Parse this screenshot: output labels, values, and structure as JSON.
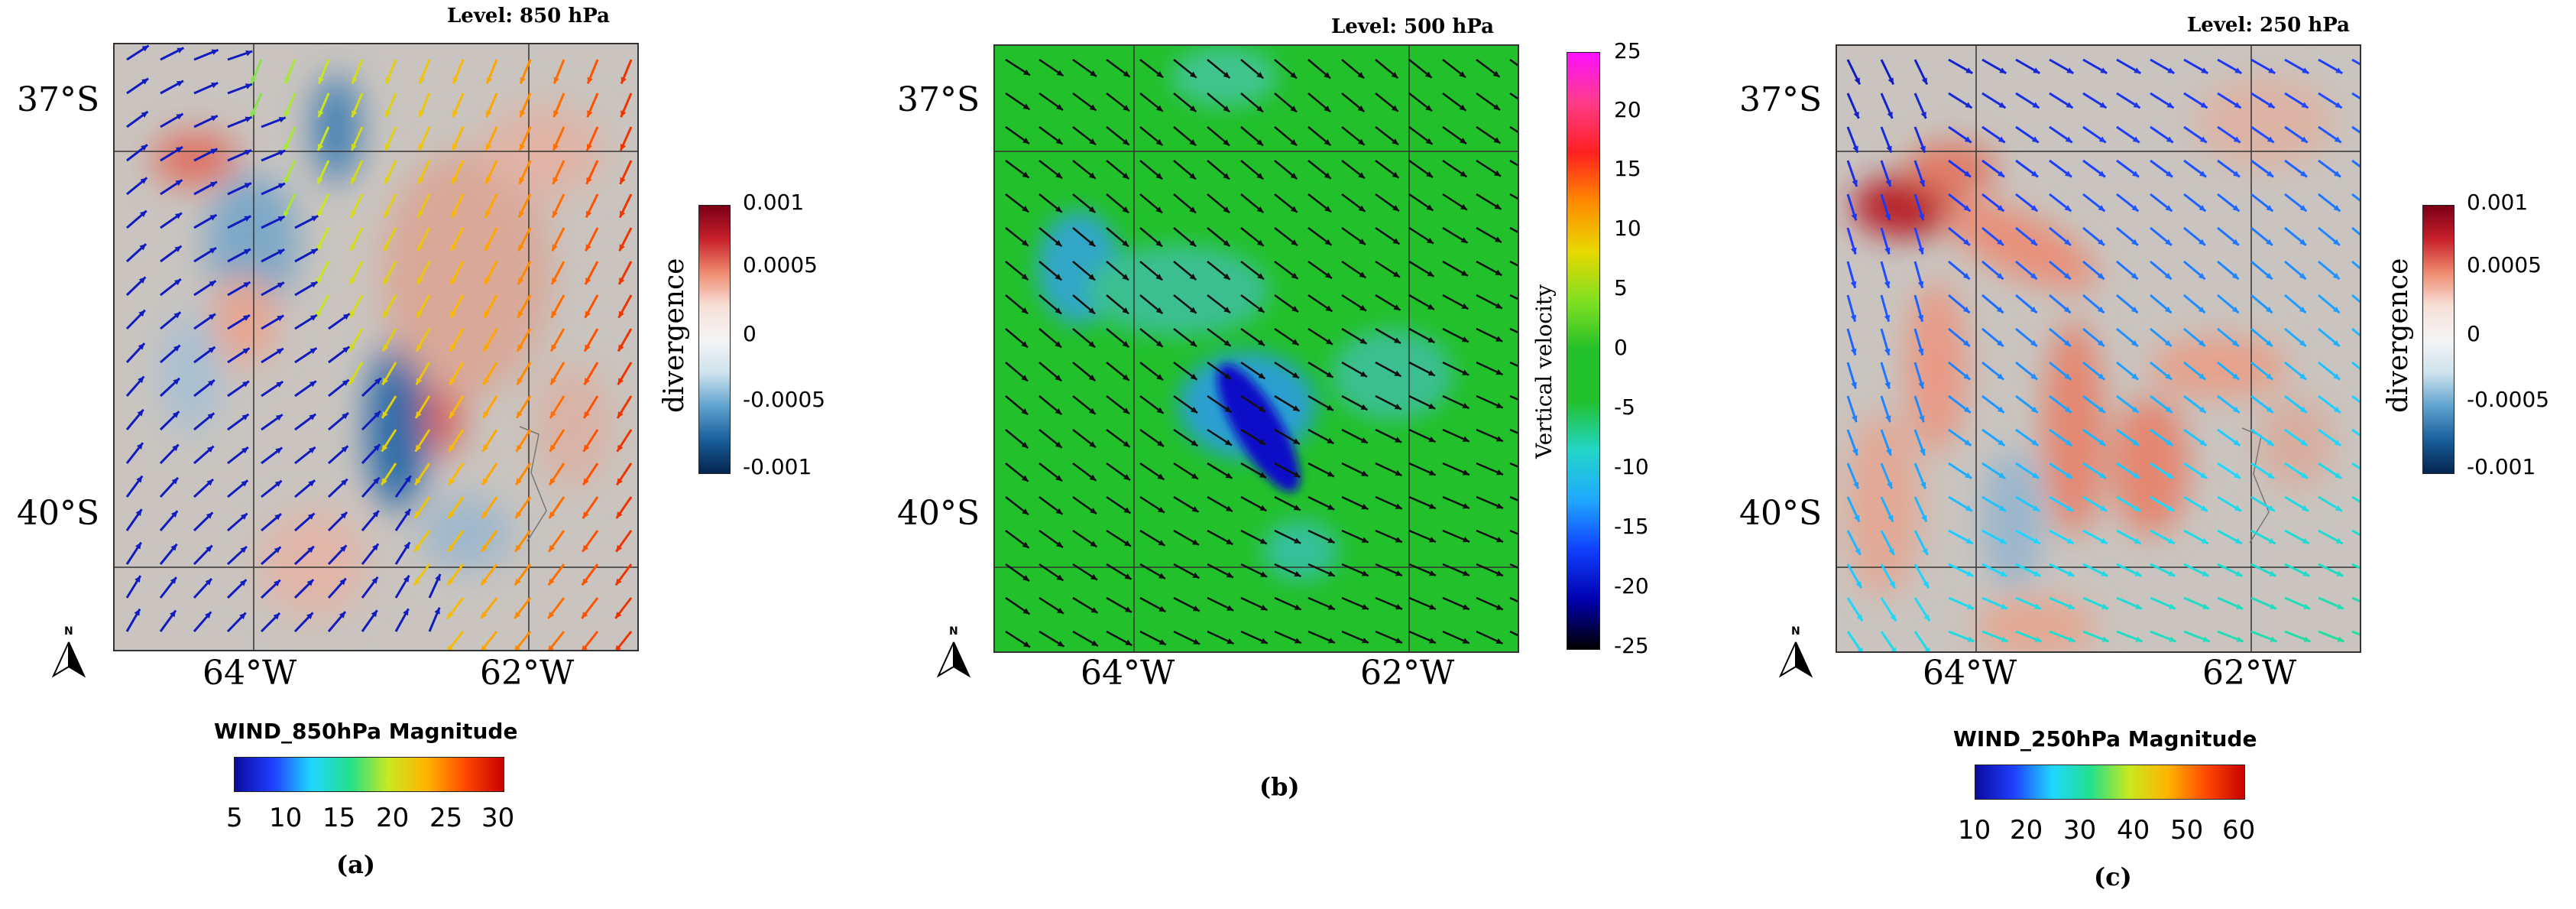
{
  "panels": [
    {
      "id": "a",
      "level": "Level: 850 hPa",
      "lat_labels": [
        "37°S",
        "40°S"
      ],
      "lon_labels": [
        "64°W",
        "62°W"
      ],
      "north_label": "N",
      "wind_bar_title": "WIND_850hPa Magnitude",
      "wind_bar_ticks": [
        "5",
        "10",
        "15",
        "20",
        "25",
        "30"
      ],
      "side_bar_title": "divergence",
      "side_bar_ticks": [
        "0.001",
        "0.0005",
        "0",
        "-0.0005",
        "-0.001"
      ],
      "caption": "(a)"
    },
    {
      "id": "b",
      "level": "Level: 500 hPa",
      "lat_labels": [
        "37°S",
        "40°S"
      ],
      "lon_labels": [
        "64°W",
        "62°W"
      ],
      "north_label": "N",
      "side_bar_title": "Vertical velocity",
      "side_bar_ticks": [
        "25",
        "20",
        "15",
        "10",
        "5",
        "0",
        "-5",
        "-10",
        "-15",
        "-20",
        "-25"
      ],
      "caption": "(b)"
    },
    {
      "id": "c",
      "level": "Level: 250 hPa",
      "lat_labels": [
        "37°S",
        "40°S"
      ],
      "lon_labels": [
        "64°W",
        "62°W"
      ],
      "north_label": "N",
      "wind_bar_title": "WIND_250hPa Magnitude",
      "wind_bar_ticks": [
        "10",
        "20",
        "30",
        "40",
        "50",
        "60"
      ],
      "side_bar_title": "divergence",
      "side_bar_ticks": [
        "0.001",
        "0.0005",
        "0",
        "-0.0005",
        "-0.001"
      ],
      "caption": "(c)"
    }
  ],
  "colors": {
    "divergence_map_bg": "#c9c4bf",
    "vertical_velocity_bg": "#22c02b",
    "arrow_dark": "#0b1f8a",
    "arrow_black": "#111111"
  }
}
